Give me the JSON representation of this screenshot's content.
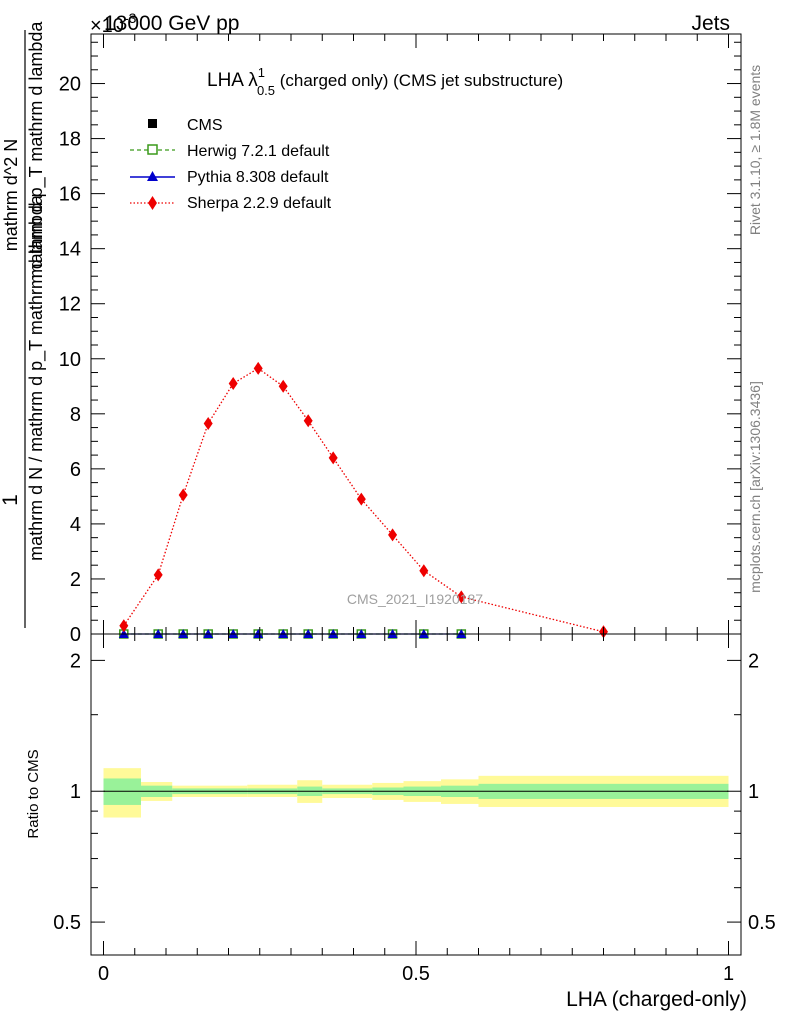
{
  "header": {
    "energy_label": "13000 GeV pp",
    "category_label": "Jets",
    "exponent_label": "×10",
    "exponent_power": "-3"
  },
  "plot_title": {
    "main": "LHA λ",
    "superscript": "1",
    "subscript": "0.5",
    "rest": " (charged only) (CMS jet substructure)"
  },
  "side_labels": {
    "rivet": "Rivet 3.1.10, ≥ 1.8M events",
    "mcplots": "mcplots.cern.ch [arXiv:1306.3436]"
  },
  "watermark": "CMS_2021_I1920187",
  "colors": {
    "cms": "#000000",
    "herwig": "#3a9a1a",
    "pythia": "#0000cc",
    "sherpa": "#ee0000",
    "band_inner": "#99f299",
    "band_outer": "#fffa99"
  },
  "chart_data": [
    {
      "type": "line",
      "panel": "main",
      "xlabel": "LHA (charged-only)",
      "ylabel_top": "1",
      "ylabel": "mathrm d N / mathrm d p_T mathrm d lambda",
      "ylabel_left_top": "mathrm d^2 N",
      "ylabel_left_bottom": "mathrm d p_T mathrm d lambda",
      "xlim": [
        -0.02,
        1.02
      ],
      "ylim": [
        0,
        21.8
      ],
      "y_scale_note": "×10^-3",
      "y_ticks": [
        0,
        2,
        4,
        6,
        8,
        10,
        12,
        14,
        16,
        18,
        20
      ],
      "y_tick_labels": [
        "0",
        "2",
        "4",
        "6",
        "8",
        "10",
        "12",
        "14",
        "16",
        "18",
        "20"
      ],
      "legend_position": "top-left",
      "series": [
        {
          "name": "CMS",
          "marker": "square",
          "x": [
            0.0325,
            0.0875,
            0.1275,
            0.1675,
            0.2075,
            0.2475,
            0.2875,
            0.3275,
            0.3675,
            0.4125,
            0.4625,
            0.5125,
            0.5725
          ],
          "values": [
            0,
            0,
            0,
            0,
            0,
            0,
            0,
            0,
            0,
            0,
            0,
            0,
            0
          ]
        },
        {
          "name": "Herwig 7.2.1 default",
          "marker": "open-square",
          "line": "dashed",
          "x": [
            0.0325,
            0.0875,
            0.1275,
            0.1675,
            0.2075,
            0.2475,
            0.2875,
            0.3275,
            0.3675,
            0.4125,
            0.4625,
            0.5125,
            0.5725
          ],
          "values": [
            0,
            0,
            0,
            0,
            0,
            0,
            0,
            0,
            0,
            0,
            0,
            0,
            0
          ]
        },
        {
          "name": "Pythia 8.308 default",
          "marker": "triangle",
          "line": "solid",
          "x": [
            0.0325,
            0.0875,
            0.1275,
            0.1675,
            0.2075,
            0.2475,
            0.2875,
            0.3275,
            0.3675,
            0.4125,
            0.4625,
            0.5125,
            0.5725
          ],
          "values": [
            0,
            0,
            0,
            0,
            0,
            0,
            0,
            0,
            0,
            0,
            0,
            0,
            0
          ]
        },
        {
          "name": "Sherpa 2.2.9 default",
          "marker": "diamond",
          "line": "dotted",
          "x": [
            0.0325,
            0.0875,
            0.1275,
            0.1675,
            0.2075,
            0.2475,
            0.2875,
            0.3275,
            0.3675,
            0.4125,
            0.4625,
            0.5125,
            0.5725,
            0.8
          ],
          "values": [
            0.3,
            2.15,
            5.05,
            7.65,
            9.1,
            9.65,
            9.0,
            7.75,
            6.4,
            4.9,
            3.6,
            2.3,
            1.35,
            0.08
          ]
        }
      ]
    },
    {
      "type": "area",
      "panel": "ratio",
      "xlabel": "LHA (charged-only)",
      "ylabel": "Ratio to CMS",
      "xlim": [
        -0.02,
        1.02
      ],
      "ylim": [
        0.42,
        2.3
      ],
      "y_scale": "log",
      "y_ticks": [
        0.5,
        1,
        2
      ],
      "y_tick_labels": [
        "0.5",
        "1",
        "2"
      ],
      "x_ticks": [
        0,
        0.5,
        1
      ],
      "x_tick_labels": [
        "0",
        "0.5",
        "1"
      ],
      "bins": [
        {
          "lo": 0.0,
          "hi": 0.06,
          "inner": [
            0.93,
            1.07
          ],
          "outer": [
            0.87,
            1.13
          ]
        },
        {
          "lo": 0.06,
          "hi": 0.11,
          "inner": [
            0.97,
            1.03
          ],
          "outer": [
            0.95,
            1.05
          ]
        },
        {
          "lo": 0.11,
          "hi": 0.23,
          "inner": [
            0.985,
            1.015
          ],
          "outer": [
            0.97,
            1.03
          ]
        },
        {
          "lo": 0.23,
          "hi": 0.31,
          "inner": [
            0.985,
            1.015
          ],
          "outer": [
            0.97,
            1.035
          ]
        },
        {
          "lo": 0.31,
          "hi": 0.35,
          "inner": [
            0.975,
            1.025
          ],
          "outer": [
            0.94,
            1.06
          ]
        },
        {
          "lo": 0.35,
          "hi": 0.43,
          "inner": [
            0.985,
            1.015
          ],
          "outer": [
            0.965,
            1.035
          ]
        },
        {
          "lo": 0.43,
          "hi": 0.48,
          "inner": [
            0.98,
            1.02
          ],
          "outer": [
            0.955,
            1.045
          ]
        },
        {
          "lo": 0.48,
          "hi": 0.54,
          "inner": [
            0.975,
            1.025
          ],
          "outer": [
            0.945,
            1.055
          ]
        },
        {
          "lo": 0.54,
          "hi": 0.6,
          "inner": [
            0.97,
            1.03
          ],
          "outer": [
            0.935,
            1.065
          ]
        },
        {
          "lo": 0.6,
          "hi": 1.0,
          "inner": [
            0.96,
            1.04
          ],
          "outer": [
            0.92,
            1.085
          ]
        }
      ],
      "reference_line": 1
    }
  ]
}
